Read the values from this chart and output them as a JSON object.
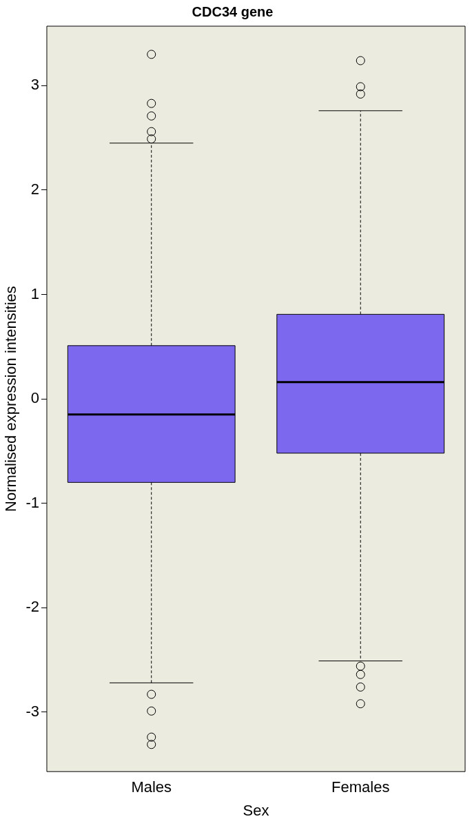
{
  "chart_data": {
    "type": "box",
    "title": "CDC34 gene",
    "xlabel": "Sex",
    "ylabel": "Normalised expression intensities",
    "categories": [
      "Males",
      "Females"
    ],
    "color": "#7b68ee",
    "boxes": [
      {
        "low": -2.72,
        "q1": -0.8,
        "median": -0.15,
        "q3": 0.51,
        "high": 2.45,
        "outliers": [
          3.3,
          2.83,
          2.71,
          2.56,
          2.49,
          -2.83,
          -2.99,
          -3.24,
          -3.31
        ]
      },
      {
        "low": -2.51,
        "q1": -0.52,
        "median": 0.16,
        "q3": 0.81,
        "high": 2.76,
        "outliers": [
          3.24,
          2.99,
          2.92,
          -2.56,
          -2.64,
          -2.76,
          -2.92
        ]
      }
    ],
    "ylim": [
      -3.57,
      3.57
    ],
    "yticks": [
      -3,
      -2,
      -1,
      0,
      1,
      2,
      3
    ],
    "grid": false,
    "legend": false,
    "marker": "circle"
  }
}
